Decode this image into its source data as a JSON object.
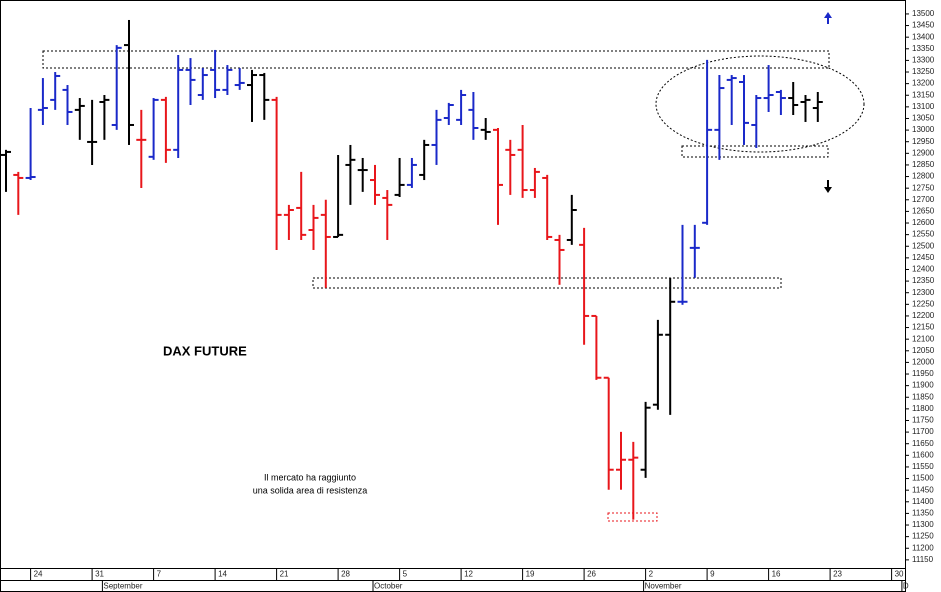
{
  "chart_data": {
    "type": "ohlc",
    "title": "DAX FUTURE",
    "notes": [
      "Il mercato ha raggiunto",
      "una solida area di resistenza"
    ],
    "categories": [
      null,
      null,
      "24",
      null,
      null,
      null,
      null,
      "31",
      null,
      null,
      null,
      null,
      "7",
      null,
      null,
      null,
      null,
      "14",
      null,
      null,
      null,
      null,
      "21",
      null,
      null,
      null,
      null,
      "28",
      null,
      null,
      null,
      null,
      "5",
      null,
      null,
      null,
      null,
      "12",
      null,
      null,
      null,
      null,
      "19",
      null,
      null,
      null,
      null,
      "26",
      null,
      null,
      null,
      null,
      "2",
      null,
      null,
      null,
      null,
      "9",
      null,
      null,
      null,
      null,
      "16",
      null,
      null,
      null,
      null,
      "23",
      null,
      null,
      null,
      null,
      "30",
      null
    ],
    "month_labels": [
      null,
      null,
      null,
      null,
      null,
      null,
      null,
      null,
      "September",
      null,
      null,
      null,
      null,
      null,
      null,
      null,
      null,
      null,
      null,
      null,
      null,
      null,
      null,
      null,
      null,
      null,
      null,
      null,
      null,
      null,
      "October",
      null,
      null,
      null,
      null,
      null,
      null,
      null,
      null,
      null,
      null,
      null,
      null,
      null,
      null,
      null,
      null,
      null,
      null,
      null,
      null,
      null,
      "November",
      null,
      null,
      null,
      null,
      null,
      null,
      null,
      null,
      null,
      null,
      null,
      null,
      null,
      null,
      null,
      null,
      null,
      null,
      null,
      null,
      "D"
    ],
    "open": [
      12893,
      12807,
      12794,
      13087,
      13130,
      13173,
      13087,
      12949,
      13121,
      13022,
      13366,
      12958,
      12885,
      13130,
      12915,
      13259,
      13151,
      13259,
      13173,
      13194,
      13194,
      13237,
      13130,
      12635,
      12665,
      12570,
      12635,
      12540,
      12850,
      12828,
      12785,
      12708,
      12721,
      12764,
      12807,
      12936,
      13052,
      13044,
      13087,
      13001,
      13001,
      12915,
      12915,
      12742,
      12794,
      12527,
      12527,
      12506,
      12200,
      11934,
      11538,
      11581,
      11538,
      11818,
      12119,
      12261,
      12493,
      12601,
      13001,
      13216,
      13207,
      13022,
      13138,
      13164,
      13138,
      13121,
      13095,
      null,
      null,
      null,
      null,
      null,
      null,
      null
    ],
    "high": [
      12915,
      12820,
      13095,
      13224,
      13250,
      13194,
      13138,
      13130,
      13151,
      13366,
      13474,
      13087,
      13138,
      13143,
      13323,
      13310,
      13267,
      13345,
      13280,
      13267,
      13259,
      13246,
      13143,
      12678,
      12820,
      12678,
      12700,
      12893,
      12936,
      12880,
      12850,
      12742,
      12880,
      12880,
      12958,
      13087,
      13117,
      13173,
      13164,
      13052,
      13009,
      12958,
      13022,
      12837,
      12807,
      12549,
      12721,
      12579,
      12200,
      11934,
      11701,
      11658,
      11830,
      12183,
      12364,
      12592,
      12592,
      13302,
      13237,
      13237,
      13237,
      13151,
      13280,
      13173,
      13207,
      13151,
      13164,
      null,
      null,
      null,
      null,
      null,
      null,
      null
    ],
    "low": [
      12734,
      12635,
      12785,
      13022,
      13087,
      13022,
      12958,
      12850,
      12958,
      13001,
      12936,
      12751,
      12872,
      12859,
      12880,
      13108,
      13130,
      13138,
      13151,
      13173,
      13035,
      13044,
      12484,
      12527,
      12527,
      12484,
      12321,
      12540,
      12678,
      12734,
      12678,
      12527,
      12712,
      12751,
      12785,
      12850,
      13022,
      13022,
      12958,
      12958,
      12592,
      12721,
      12708,
      12708,
      12527,
      12334,
      12506,
      12076,
      11925,
      11452,
      11452,
      11323,
      11503,
      11796,
      11774,
      12248,
      12364,
      12592,
      12872,
      13022,
      12936,
      12923,
      13078,
      13065,
      13065,
      13035,
      13035,
      null,
      null,
      null,
      null,
      null,
      null,
      null
    ],
    "close": [
      12906,
      12794,
      12798,
      13095,
      13233,
      13078,
      13104,
      12949,
      13130,
      13354,
      13022,
      12958,
      13130,
      12915,
      13259,
      13216,
      13237,
      13173,
      13259,
      13203,
      13237,
      13130,
      12635,
      12656,
      12549,
      12622,
      12540,
      12549,
      12872,
      12828,
      12721,
      12678,
      12764,
      12850,
      12936,
      13044,
      13108,
      13151,
      13009,
      12992,
      12764,
      12893,
      12742,
      12820,
      12540,
      12484,
      12656,
      12200,
      11934,
      11538,
      11581,
      11590,
      11805,
      12119,
      12261,
      12261,
      12493,
      13001,
      13181,
      13224,
      13031,
      13138,
      13151,
      13138,
      13108,
      13130,
      13121,
      null,
      null,
      null,
      null,
      null,
      null,
      null
    ],
    "colors": [
      "#000000",
      "#e8161b",
      "#1a29c9",
      "#1a29c9",
      "#1a29c9",
      "#1a29c9",
      "#000000",
      "#000000",
      "#000000",
      "#1a29c9",
      "#000000",
      "#e8161b",
      "#1a29c9",
      "#e8161b",
      "#1a29c9",
      "#1a29c9",
      "#1a29c9",
      "#1a29c9",
      "#1a29c9",
      "#1a29c9",
      "#000000",
      "#000000",
      "#e8161b",
      "#e8161b",
      "#e8161b",
      "#e8161b",
      "#e8161b",
      "#000000",
      "#000000",
      "#000000",
      "#e8161b",
      "#e8161b",
      "#000000",
      "#1a29c9",
      "#000000",
      "#1a29c9",
      "#1a29c9",
      "#1a29c9",
      "#1a29c9",
      "#000000",
      "#e8161b",
      "#e8161b",
      "#e8161b",
      "#e8161b",
      "#e8161b",
      "#e8161b",
      "#000000",
      "#e8161b",
      "#e8161b",
      "#e8161b",
      "#e8161b",
      "#e8161b",
      "#000000",
      "#000000",
      "#000000",
      "#1a29c9",
      "#1a29c9",
      "#1a29c9",
      "#1a29c9",
      "#1a29c9",
      "#1a29c9",
      "#1a29c9",
      "#1a29c9",
      "#1a29c9",
      "#000000",
      "#000000",
      "#000000",
      null,
      null,
      null,
      null,
      null,
      null,
      null
    ],
    "ylim": [
      11115,
      13560
    ],
    "yticks": [
      11150,
      11200,
      11250,
      11300,
      11350,
      11400,
      11450,
      11500,
      11550,
      11600,
      11650,
      11700,
      11750,
      11800,
      11850,
      11900,
      11950,
      12000,
      12050,
      12100,
      12150,
      12200,
      12250,
      12300,
      12350,
      12400,
      12450,
      12500,
      12550,
      12600,
      12650,
      12700,
      12750,
      12800,
      12850,
      12900,
      12950,
      13000,
      13050,
      13100,
      13150,
      13200,
      13250,
      13300,
      13350,
      13400,
      13450,
      13500
    ]
  }
}
